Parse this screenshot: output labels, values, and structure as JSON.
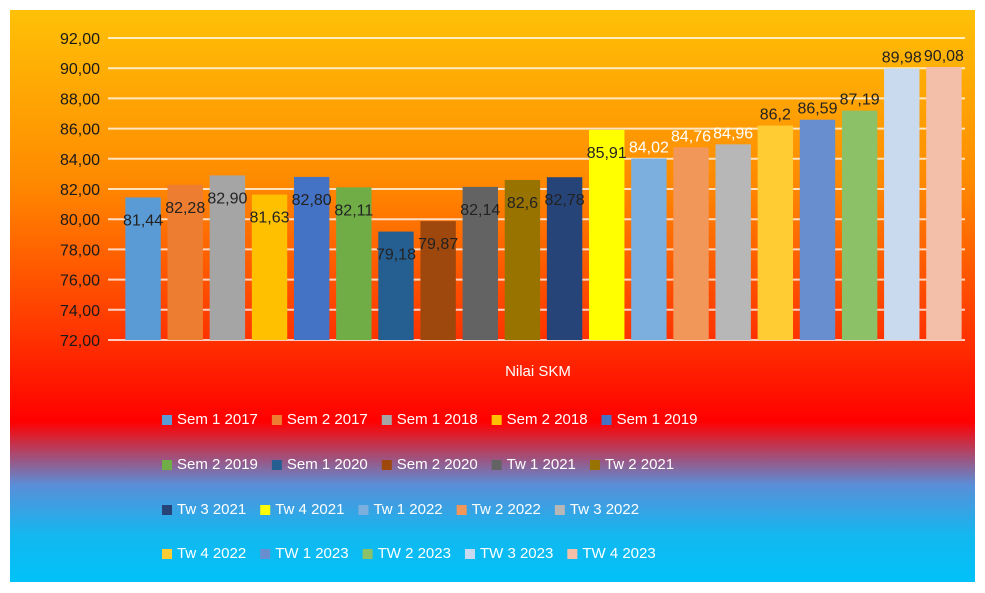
{
  "chart_data": {
    "type": "bar",
    "title": "",
    "xlabel": "Nilai SKM",
    "ylabel": "",
    "ylim": [
      72,
      92
    ],
    "y_ticks": [
      "72,00",
      "74,00",
      "76,00",
      "78,00",
      "80,00",
      "82,00",
      "84,00",
      "86,00",
      "88,00",
      "90,00",
      "92,00"
    ],
    "grid": true,
    "legend_position": "bottom",
    "series": [
      {
        "name": "Sem 1 2017",
        "value": 81.44,
        "label": "81,44",
        "color": "#5b9bd5"
      },
      {
        "name": "Sem 2 2017",
        "value": 82.28,
        "label": "82,28",
        "color": "#ed7d31"
      },
      {
        "name": "Sem 1 2018",
        "value": 82.9,
        "label": "82,90",
        "color": "#a5a5a5"
      },
      {
        "name": "Sem 2 2018",
        "value": 81.63,
        "label": "81,63",
        "color": "#ffc000"
      },
      {
        "name": "Sem 1 2019",
        "value": 82.8,
        "label": "82,80",
        "color": "#4472c4"
      },
      {
        "name": "Sem 2 2019",
        "value": 82.11,
        "label": "82,11",
        "color": "#70ad47"
      },
      {
        "name": "Sem 1 2020",
        "value": 79.18,
        "label": "79,18",
        "color": "#255e91"
      },
      {
        "name": "Sem 2 2020",
        "value": 79.87,
        "label": "79,87",
        "color": "#9e480e"
      },
      {
        "name": "Tw 1 2021",
        "value": 82.14,
        "label": "82,14",
        "color": "#636363"
      },
      {
        "name": "Tw 2 2021",
        "value": 82.6,
        "label": "82,6",
        "color": "#997300"
      },
      {
        "name": "Tw 3 2021",
        "value": 82.78,
        "label": "82,78",
        "color": "#264478"
      },
      {
        "name": "Tw 4 2021",
        "value": 85.91,
        "label": "85,91",
        "color": "#ffff00"
      },
      {
        "name": "Tw 1 2022",
        "value": 84.02,
        "label": "84,02",
        "color": "#7cafdd"
      },
      {
        "name": "Tw 2 2022",
        "value": 84.76,
        "label": "84,76",
        "color": "#f1975a"
      },
      {
        "name": "Tw 3 2022",
        "value": 84.96,
        "label": "84,96",
        "color": "#b7b7b7"
      },
      {
        "name": "Tw 4 2022",
        "value": 86.2,
        "label": "86,2",
        "color": "#ffcd33"
      },
      {
        "name": "TW 1 2023",
        "value": 86.59,
        "label": "86,59",
        "color": "#698ed0"
      },
      {
        "name": "TW 2 2023",
        "value": 87.19,
        "label": "87,19",
        "color": "#8cc168"
      },
      {
        "name": "TW 3 2023",
        "value": 89.98,
        "label": "89,98",
        "color": "#c9d9ee"
      },
      {
        "name": "TW 4 2023",
        "value": 90.08,
        "label": "90,08",
        "color": "#f4bfa9"
      }
    ]
  }
}
